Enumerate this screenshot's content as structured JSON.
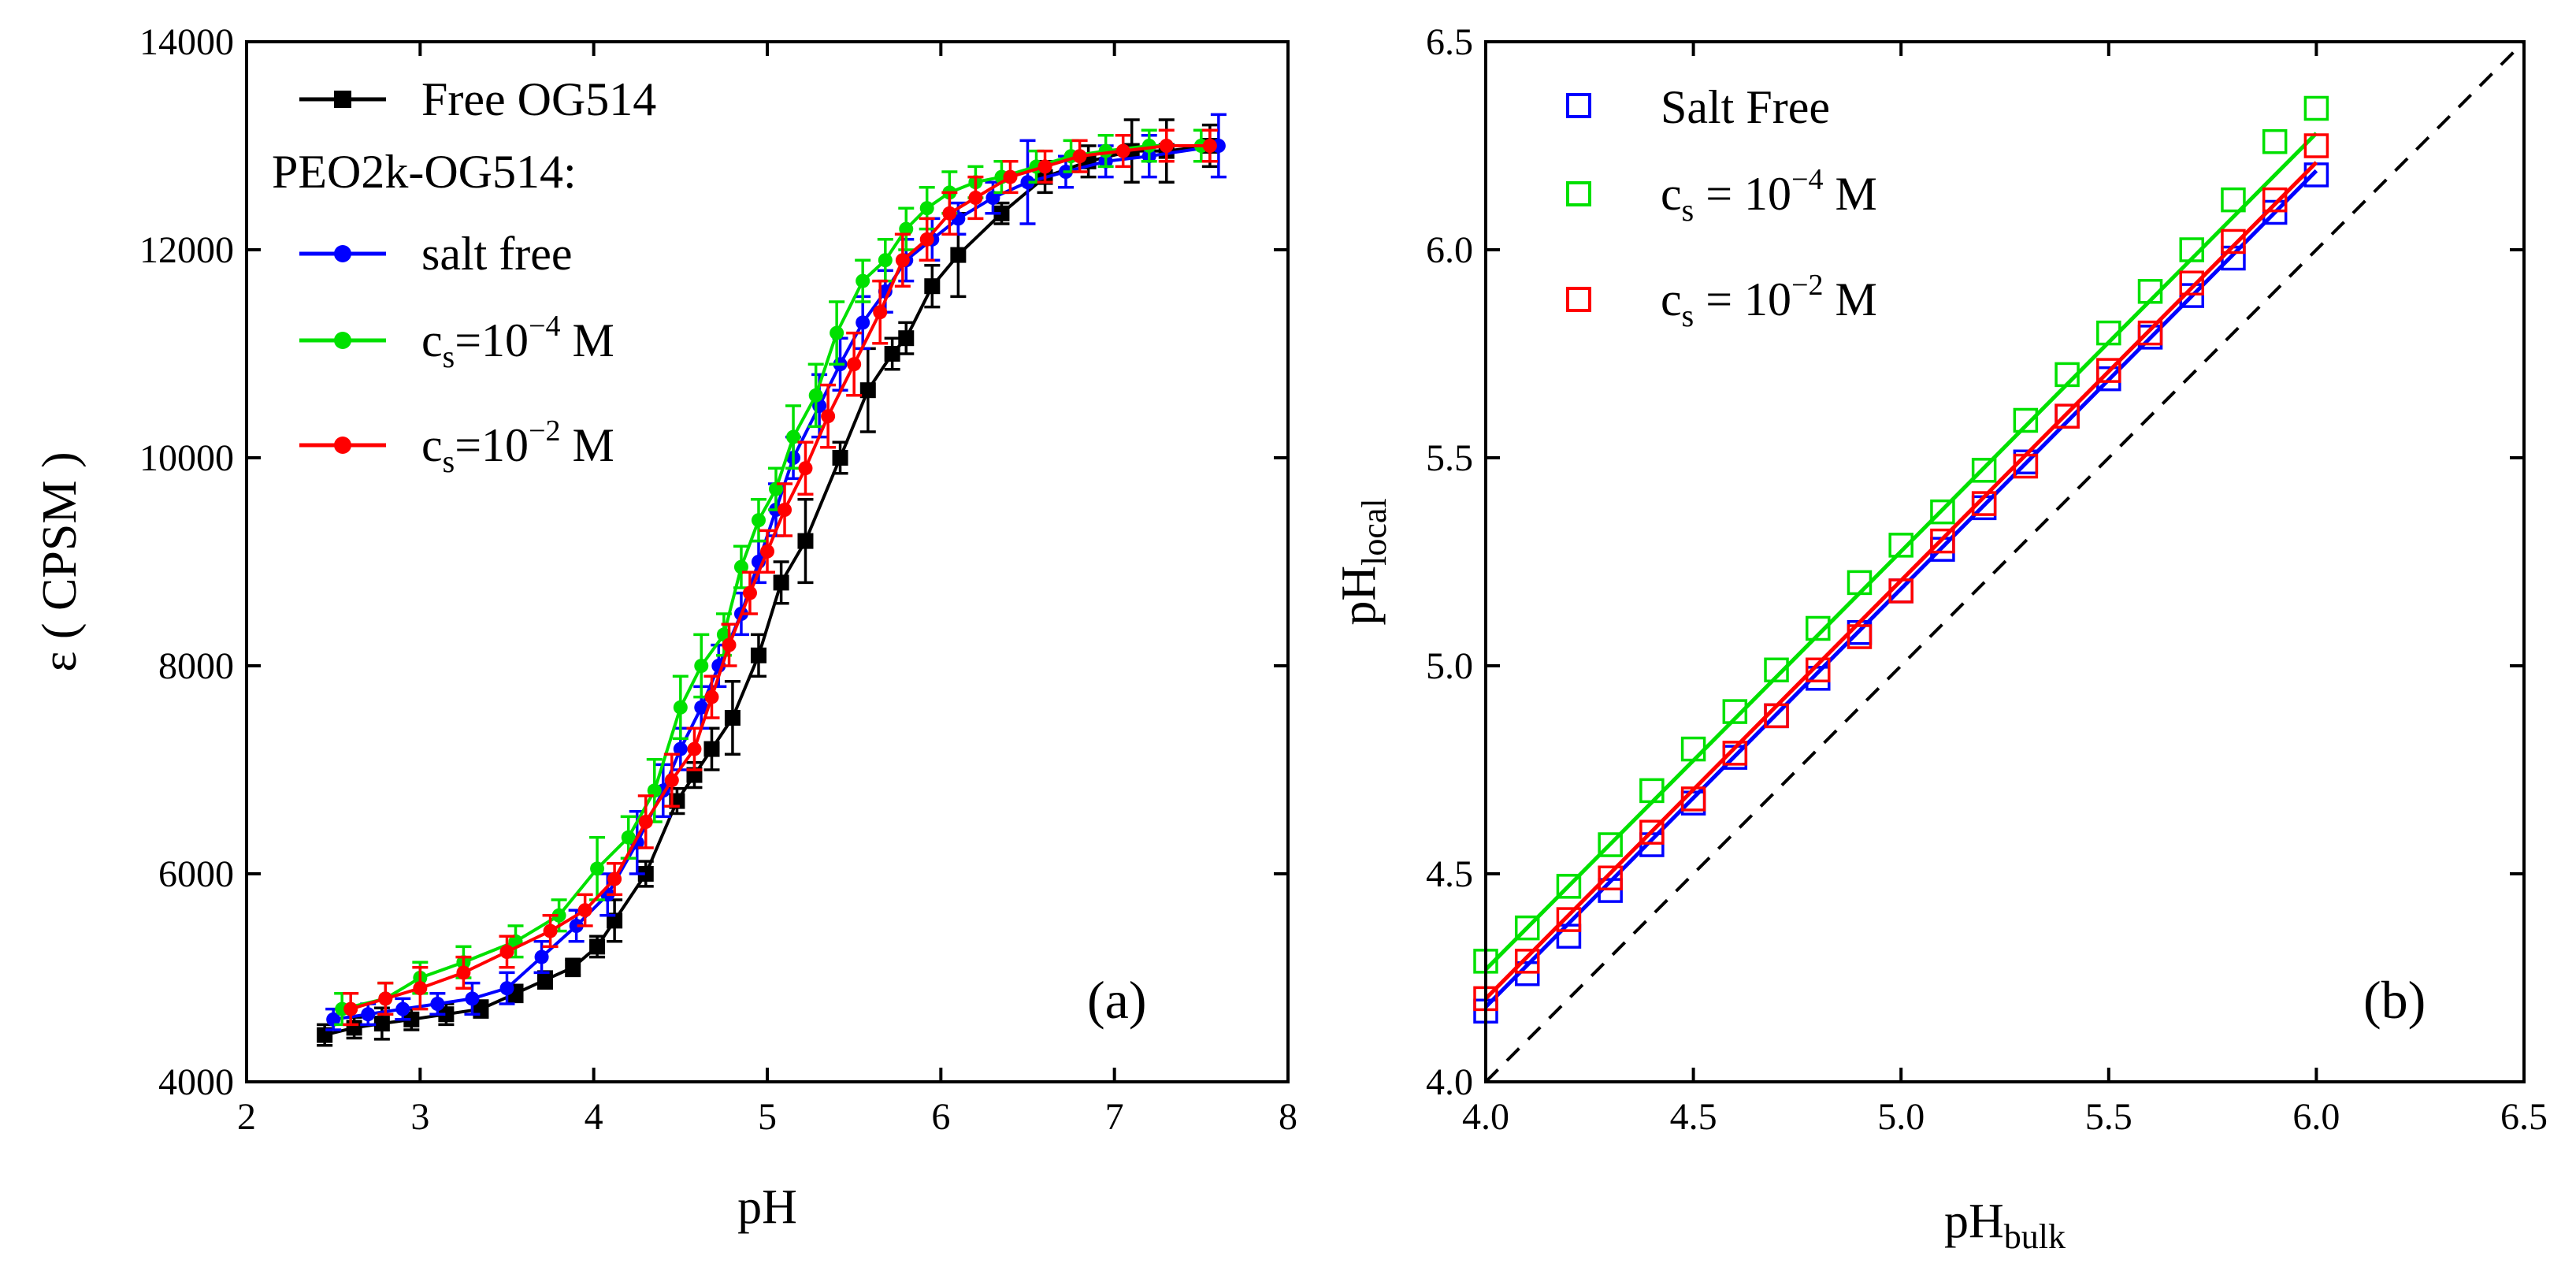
{
  "chart_data": [
    {
      "type": "line",
      "panel_label": "(a)",
      "xlabel": "pH",
      "ylabel": "ε ( CPSM )",
      "xlim": [
        2,
        8
      ],
      "ylim": [
        4000,
        14000
      ],
      "xticks": [
        "2",
        "3",
        "4",
        "5",
        "6",
        "7",
        "8"
      ],
      "yticks": [
        "4000",
        "6000",
        "8000",
        "10000",
        "12000",
        "14000"
      ],
      "grid": false,
      "legend_position": "top-left",
      "legend_heading": "PEO2k-OG514:",
      "series": [
        {
          "name": "Free OG514",
          "color": "#000000",
          "marker": "square",
          "x": [
            2.45,
            2.62,
            2.78,
            2.95,
            3.15,
            3.35,
            3.55,
            3.72,
            3.88,
            4.02,
            4.12,
            4.3,
            4.48,
            4.58,
            4.68,
            4.8,
            4.95,
            5.08,
            5.22,
            5.42,
            5.58,
            5.72,
            5.8,
            5.95,
            6.1,
            6.35,
            6.6,
            6.85,
            7.1,
            7.3,
            7.55
          ],
          "y": [
            4450,
            4520,
            4560,
            4600,
            4650,
            4700,
            4850,
            4980,
            5100,
            5300,
            5550,
            6000,
            6700,
            6950,
            7200,
            7500,
            8100,
            8800,
            9200,
            10000,
            10650,
            11000,
            11150,
            11650,
            11950,
            12350,
            12700,
            12850,
            12950,
            12950,
            13000
          ],
          "err": [
            100,
            100,
            150,
            100,
            100,
            80,
            80,
            80,
            80,
            100,
            200,
            120,
            120,
            120,
            200,
            350,
            200,
            200,
            400,
            150,
            400,
            150,
            150,
            200,
            400,
            100,
            150,
            150,
            300,
            300,
            200
          ]
        },
        {
          "name": "salt free",
          "color": "#0000ff",
          "marker": "circle",
          "x": [
            2.5,
            2.7,
            2.9,
            3.1,
            3.3,
            3.5,
            3.7,
            3.9,
            4.08,
            4.25,
            4.4,
            4.5,
            4.62,
            4.72,
            4.85,
            4.95,
            5.05,
            5.15,
            5.3,
            5.42,
            5.55,
            5.68,
            5.8,
            5.95,
            6.1,
            6.3,
            6.5,
            6.72,
            6.95,
            7.2,
            7.6
          ],
          "y": [
            4600,
            4650,
            4700,
            4750,
            4800,
            4900,
            5200,
            5500,
            5800,
            6300,
            6800,
            7200,
            7600,
            8000,
            8500,
            9000,
            9500,
            10000,
            10500,
            10900,
            11300,
            11600,
            11900,
            12100,
            12300,
            12500,
            12650,
            12750,
            12850,
            12900,
            13000
          ],
          "err": [
            100,
            100,
            100,
            100,
            150,
            150,
            150,
            150,
            200,
            300,
            250,
            200,
            200,
            200,
            200,
            200,
            250,
            200,
            300,
            250,
            250,
            200,
            200,
            200,
            150,
            150,
            400,
            150,
            150,
            200,
            300
          ]
        },
        {
          "name": "c_s=10^-4 M",
          "color": "#00e000",
          "marker": "circle",
          "x": [
            2.55,
            2.8,
            3.0,
            3.25,
            3.55,
            3.8,
            4.02,
            4.2,
            4.35,
            4.5,
            4.62,
            4.75,
            4.85,
            4.95,
            5.05,
            5.15,
            5.28,
            5.4,
            5.55,
            5.68,
            5.8,
            5.92,
            6.05,
            6.2,
            6.35,
            6.55,
            6.75,
            6.95,
            7.2,
            7.5
          ],
          "y": [
            4700,
            4800,
            5000,
            5150,
            5350,
            5600,
            6050,
            6350,
            6800,
            7600,
            8000,
            8300,
            8950,
            9400,
            9700,
            10200,
            10600,
            11200,
            11700,
            11900,
            12200,
            12400,
            12550,
            12650,
            12700,
            12800,
            12900,
            12950,
            13000,
            13000
          ],
          "err": [
            150,
            150,
            150,
            150,
            150,
            150,
            300,
            200,
            300,
            300,
            300,
            200,
            200,
            200,
            200,
            300,
            300,
            300,
            200,
            200,
            200,
            200,
            200,
            150,
            150,
            150,
            150,
            150,
            150,
            150
          ]
        },
        {
          "name": "c_s=10^-2 M",
          "color": "#ff0000",
          "marker": "circle",
          "x": [
            2.6,
            2.8,
            3.0,
            3.25,
            3.5,
            3.75,
            3.95,
            4.12,
            4.3,
            4.45,
            4.58,
            4.68,
            4.78,
            4.9,
            5.0,
            5.1,
            5.22,
            5.35,
            5.5,
            5.65,
            5.78,
            5.92,
            6.05,
            6.2,
            6.4,
            6.6,
            6.8,
            7.05,
            7.3,
            7.55
          ],
          "y": [
            4700,
            4800,
            4900,
            5050,
            5250,
            5450,
            5650,
            5950,
            6500,
            6900,
            7200,
            7700,
            8200,
            8700,
            9100,
            9500,
            9900,
            10400,
            10900,
            11400,
            11900,
            12100,
            12350,
            12500,
            12700,
            12800,
            12900,
            12950,
            13000,
            13000
          ],
          "err": [
            150,
            150,
            200,
            150,
            150,
            150,
            150,
            150,
            250,
            250,
            200,
            200,
            200,
            200,
            200,
            250,
            250,
            300,
            300,
            300,
            250,
            200,
            200,
            200,
            150,
            150,
            150,
            150,
            150,
            150
          ]
        }
      ]
    },
    {
      "type": "scatter",
      "panel_label": "(b)",
      "xlabel": "pH",
      "xlabel_sub": "bulk",
      "ylabel": "pH",
      "ylabel_sub": "local",
      "xlim": [
        4.0,
        6.5
      ],
      "ylim": [
        4.0,
        6.5
      ],
      "xticks": [
        "4.0",
        "4.5",
        "5.0",
        "5.5",
        "6.0",
        "6.5"
      ],
      "yticks": [
        "4.0",
        "4.5",
        "5.0",
        "5.5",
        "6.0",
        "6.5"
      ],
      "grid": false,
      "legend_position": "top-left",
      "reference_line": {
        "style": "dashed",
        "color": "#000000",
        "x": [
          4.0,
          6.5
        ],
        "y": [
          4.0,
          6.5
        ]
      },
      "series": [
        {
          "name": "Salt Free",
          "color": "#0000ff",
          "marker": "open-square",
          "x": [
            4.0,
            4.1,
            4.2,
            4.3,
            4.4,
            4.5,
            4.6,
            4.7,
            4.8,
            4.9,
            5.0,
            5.1,
            5.2,
            5.3,
            5.4,
            5.5,
            5.6,
            5.7,
            5.8,
            5.9,
            6.0
          ],
          "y": [
            4.17,
            4.26,
            4.35,
            4.46,
            4.57,
            4.67,
            4.78,
            4.88,
            4.97,
            5.08,
            5.18,
            5.28,
            5.38,
            5.49,
            5.6,
            5.69,
            5.79,
            5.89,
            5.98,
            6.09,
            6.18
          ],
          "fit": {
            "x": [
              4.0,
              6.0
            ],
            "y": [
              4.18,
              6.19
            ]
          }
        },
        {
          "name": "c_s = 10^-4 M",
          "color": "#00e000",
          "marker": "open-square",
          "x": [
            4.0,
            4.1,
            4.2,
            4.3,
            4.4,
            4.5,
            4.6,
            4.7,
            4.8,
            4.9,
            5.0,
            5.1,
            5.2,
            5.3,
            5.4,
            5.5,
            5.6,
            5.7,
            5.8,
            5.9,
            6.0
          ],
          "y": [
            4.29,
            4.37,
            4.47,
            4.57,
            4.7,
            4.8,
            4.89,
            4.99,
            5.09,
            5.2,
            5.29,
            5.37,
            5.47,
            5.59,
            5.7,
            5.8,
            5.9,
            6.0,
            6.12,
            6.26,
            6.34
          ],
          "fit": {
            "x": [
              4.0,
              6.0
            ],
            "y": [
              4.27,
              6.28
            ]
          }
        },
        {
          "name": "c_s = 10^-2 M",
          "color": "#ff0000",
          "marker": "open-square",
          "x": [
            4.0,
            4.1,
            4.2,
            4.3,
            4.4,
            4.5,
            4.6,
            4.7,
            4.8,
            4.9,
            5.0,
            5.1,
            5.2,
            5.3,
            5.4,
            5.5,
            5.6,
            5.7,
            5.8,
            5.9,
            6.0
          ],
          "y": [
            4.2,
            4.29,
            4.39,
            4.49,
            4.6,
            4.68,
            4.79,
            4.88,
            4.99,
            5.07,
            5.18,
            5.3,
            5.39,
            5.48,
            5.6,
            5.71,
            5.8,
            5.92,
            6.02,
            6.12,
            6.25
          ],
          "fit": {
            "x": [
              4.0,
              6.0
            ],
            "y": [
              4.2,
              6.21
            ]
          }
        }
      ]
    }
  ]
}
